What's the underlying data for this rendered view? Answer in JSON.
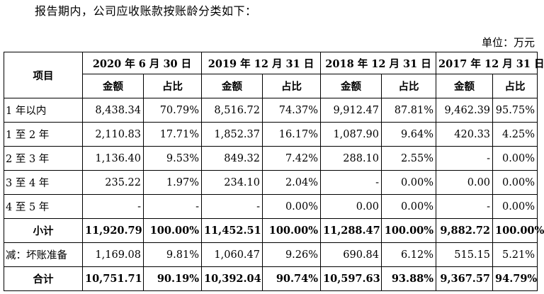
{
  "intro_text": "报告期内，公司应收账款按账龄分类如下：",
  "unit_label": "单位：万元",
  "table": {
    "item_header": "项目",
    "periods": [
      "2020 年 6 月 30 日",
      "2019 年 12 月 31 日",
      "2018 年 12 月 31 日",
      "2017 年 12 月 31 日"
    ],
    "sub_headers": [
      "金额",
      "占比"
    ],
    "rows": [
      {
        "label": "1 年以内",
        "bold": false,
        "cells": [
          "8,438.34",
          "70.79%",
          "8,516.72",
          "74.37%",
          "9,912.47",
          "87.81%",
          "9,462.39",
          "95.75%"
        ]
      },
      {
        "label": "1 至 2 年",
        "bold": false,
        "cells": [
          "2,110.83",
          "17.71%",
          "1,852.37",
          "16.17%",
          "1,087.90",
          "9.64%",
          "420.33",
          "4.25%"
        ]
      },
      {
        "label": "2 至 3 年",
        "bold": false,
        "cells": [
          "1,136.40",
          "9.53%",
          "849.32",
          "7.42%",
          "288.10",
          "2.55%",
          "-",
          "0.00%"
        ]
      },
      {
        "label": "3 至 4 年",
        "bold": false,
        "cells": [
          "235.22",
          "1.97%",
          "234.10",
          "2.04%",
          "-",
          "0.00%",
          "0.00",
          "0.00%"
        ]
      },
      {
        "label": "4 至 5 年",
        "bold": false,
        "cells": [
          "-",
          "-",
          "-",
          "0.00%",
          "0.00",
          "0.00%",
          "-",
          "0.00%"
        ]
      },
      {
        "label": "小计",
        "bold": true,
        "cells": [
          "11,920.79",
          "100.00%",
          "11,452.51",
          "100.00%",
          "11,288.47",
          "100.00%",
          "9,882.72",
          "100.00%"
        ]
      },
      {
        "label": "减：坏账准备",
        "bold": false,
        "cells": [
          "1,169.08",
          "9.81%",
          "1,060.47",
          "9.26%",
          "690.84",
          "6.12%",
          "515.15",
          "5.21%"
        ]
      },
      {
        "label": "合计",
        "bold": true,
        "cells": [
          "10,751.71",
          "90.19%",
          "10,392.04",
          "90.74%",
          "10,597.63",
          "93.88%",
          "9,367.57",
          "94.79%"
        ]
      }
    ]
  }
}
